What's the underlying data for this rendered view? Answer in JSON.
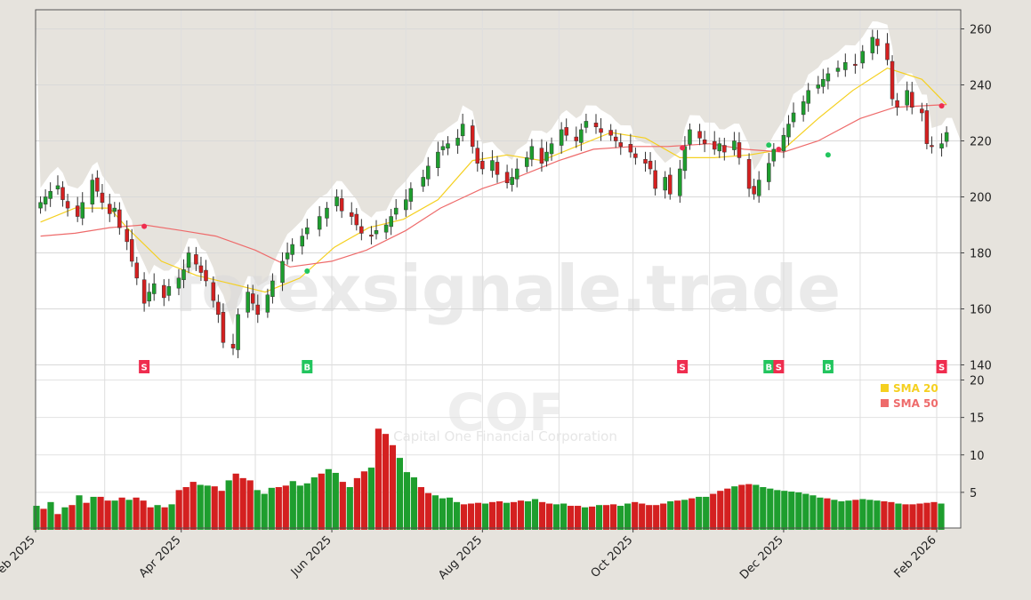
{
  "colors": {
    "background": "#e6e3dd",
    "plot_bg": "#ffffff",
    "up": "#1e9e2e",
    "down": "#d42020",
    "sma20": "#f5d020",
    "sma50": "#ee6b6b",
    "buy": "#22c55e",
    "sell": "#ef2d4f"
  },
  "watermark": {
    "site": "forexsignale.trade",
    "symbol": "COF",
    "company": "Capital One Financial Corporation"
  },
  "chart_data": [
    {
      "type": "candlestick",
      "title": "",
      "xlabel": "",
      "ylabel": "",
      "x_tick_labels": [
        "Feb 2025",
        "Apr 2025",
        "Jun 2025",
        "Aug 2025",
        "Oct 2025",
        "Dec 2025",
        "Feb 2026"
      ],
      "x_tick_dates": [
        "2025-02-01",
        "2025-04-01",
        "2025-06-01",
        "2025-08-01",
        "2025-10-01",
        "2025-12-01",
        "2026-02-01"
      ],
      "ylim": [
        140,
        265
      ],
      "y_ticks": [
        140,
        160,
        180,
        200,
        220,
        240,
        260
      ],
      "grid": true,
      "candles": [
        [
          "2025-02-03",
          198
        ],
        [
          "2025-02-05",
          200
        ],
        [
          "2025-02-07",
          202
        ],
        [
          "2025-02-10",
          204
        ],
        [
          "2025-02-12",
          199
        ],
        [
          "2025-02-14",
          196
        ],
        [
          "2025-02-18",
          193
        ],
        [
          "2025-02-20",
          198
        ],
        [
          "2025-02-24",
          206
        ],
        [
          "2025-02-26",
          202
        ],
        [
          "2025-02-28",
          198
        ],
        [
          "2025-03-03",
          194
        ],
        [
          "2025-03-05",
          196
        ],
        [
          "2025-03-07",
          189
        ],
        [
          "2025-03-10",
          184
        ],
        [
          "2025-03-12",
          177
        ],
        [
          "2025-03-14",
          171
        ],
        [
          "2025-03-17",
          162
        ],
        [
          "2025-03-19",
          166
        ],
        [
          "2025-03-21",
          169
        ],
        [
          "2025-03-25",
          164
        ],
        [
          "2025-03-27",
          168
        ],
        [
          "2025-03-31",
          171
        ],
        [
          "2025-04-02",
          174
        ],
        [
          "2025-04-04",
          180
        ],
        [
          "2025-04-07",
          176
        ],
        [
          "2025-04-09",
          173
        ],
        [
          "2025-04-11",
          170
        ],
        [
          "2025-04-14",
          163
        ],
        [
          "2025-04-16",
          158
        ],
        [
          "2025-04-18",
          148
        ],
        [
          "2025-04-22",
          146
        ],
        [
          "2025-04-24",
          158
        ],
        [
          "2025-04-28",
          166
        ],
        [
          "2025-04-30",
          162
        ],
        [
          "2025-05-02",
          158
        ],
        [
          "2025-05-06",
          165
        ],
        [
          "2025-05-08",
          170
        ],
        [
          "2025-05-12",
          177
        ],
        [
          "2025-05-14",
          180
        ],
        [
          "2025-05-16",
          183
        ],
        [
          "2025-05-20",
          186
        ],
        [
          "2025-05-22",
          189
        ],
        [
          "2025-05-27",
          193
        ],
        [
          "2025-05-30",
          196
        ],
        [
          "2025-06-03",
          200
        ],
        [
          "2025-06-05",
          195
        ],
        [
          "2025-06-09",
          193
        ],
        [
          "2025-06-11",
          190
        ],
        [
          "2025-06-13",
          187
        ],
        [
          "2025-06-17",
          186
        ],
        [
          "2025-06-19",
          188
        ],
        [
          "2025-06-23",
          190
        ],
        [
          "2025-06-25",
          193
        ],
        [
          "2025-06-27",
          196
        ],
        [
          "2025-07-01",
          199
        ],
        [
          "2025-07-03",
          203
        ],
        [
          "2025-07-08",
          207
        ],
        [
          "2025-07-10",
          211
        ],
        [
          "2025-07-14",
          216
        ],
        [
          "2025-07-16",
          218
        ],
        [
          "2025-07-18",
          219
        ],
        [
          "2025-07-22",
          221
        ],
        [
          "2025-07-24",
          226
        ],
        [
          "2025-07-28",
          218
        ],
        [
          "2025-07-30",
          212
        ],
        [
          "2025-08-01",
          210
        ],
        [
          "2025-08-05",
          213
        ],
        [
          "2025-08-07",
          208
        ],
        [
          "2025-08-11",
          205
        ],
        [
          "2025-08-13",
          207
        ],
        [
          "2025-08-15",
          210
        ],
        [
          "2025-08-19",
          214
        ],
        [
          "2025-08-21",
          218
        ],
        [
          "2025-08-25",
          212
        ],
        [
          "2025-08-27",
          216
        ],
        [
          "2025-08-29",
          219
        ],
        [
          "2025-09-02",
          224
        ],
        [
          "2025-09-04",
          222
        ],
        [
          "2025-09-08",
          220
        ],
        [
          "2025-09-10",
          224
        ],
        [
          "2025-09-12",
          227
        ],
        [
          "2025-09-16",
          225
        ],
        [
          "2025-09-18",
          223
        ],
        [
          "2025-09-22",
          222
        ],
        [
          "2025-09-24",
          220
        ],
        [
          "2025-09-26",
          218
        ],
        [
          "2025-09-30",
          216
        ],
        [
          "2025-10-02",
          214
        ],
        [
          "2025-10-06",
          212
        ],
        [
          "2025-10-08",
          210
        ],
        [
          "2025-10-10",
          203
        ],
        [
          "2025-10-14",
          207
        ],
        [
          "2025-10-16",
          201
        ],
        [
          "2025-10-20",
          210
        ],
        [
          "2025-10-22",
          218
        ],
        [
          "2025-10-24",
          224
        ],
        [
          "2025-10-28",
          221
        ],
        [
          "2025-10-30",
          219
        ],
        [
          "2025-11-03",
          217
        ],
        [
          "2025-11-05",
          219
        ],
        [
          "2025-11-07",
          216
        ],
        [
          "2025-11-11",
          220
        ],
        [
          "2025-11-13",
          214
        ],
        [
          "2025-11-17",
          203
        ],
        [
          "2025-11-19",
          201
        ],
        [
          "2025-11-21",
          206
        ],
        [
          "2025-11-25",
          212
        ],
        [
          "2025-11-27",
          217
        ],
        [
          "2025-12-01",
          222
        ],
        [
          "2025-12-03",
          226
        ],
        [
          "2025-12-05",
          230
        ],
        [
          "2025-12-09",
          234
        ],
        [
          "2025-12-11",
          238
        ],
        [
          "2025-12-15",
          240
        ],
        [
          "2025-12-17",
          242
        ],
        [
          "2025-12-19",
          244
        ],
        [
          "2025-12-23",
          246
        ],
        [
          "2025-12-26",
          248
        ],
        [
          "2025-12-30",
          247
        ],
        [
          "2026-01-02",
          252
        ],
        [
          "2026-01-06",
          257
        ],
        [
          "2026-01-08",
          254
        ],
        [
          "2026-01-12",
          249
        ],
        [
          "2026-01-14",
          235
        ],
        [
          "2026-01-16",
          232
        ],
        [
          "2026-01-20",
          238
        ],
        [
          "2026-01-22",
          232
        ],
        [
          "2026-01-26",
          230
        ],
        [
          "2026-01-28",
          219
        ],
        [
          "2026-01-30",
          218
        ],
        [
          "2026-02-03",
          219
        ],
        [
          "2026-02-05",
          223
        ]
      ],
      "series": [
        {
          "name": "SMA 20",
          "points": [
            [
              "2025-02-03",
              191
            ],
            [
              "2025-02-17",
              196
            ],
            [
              "2025-03-03",
              196
            ],
            [
              "2025-03-10",
              189
            ],
            [
              "2025-03-24",
              177
            ],
            [
              "2025-04-07",
              172
            ],
            [
              "2025-04-21",
              169
            ],
            [
              "2025-05-05",
              166
            ],
            [
              "2025-05-19",
              171
            ],
            [
              "2025-06-02",
              182
            ],
            [
              "2025-06-16",
              189
            ],
            [
              "2025-06-30",
              192
            ],
            [
              "2025-07-14",
              199
            ],
            [
              "2025-07-28",
              213
            ],
            [
              "2025-08-11",
              215
            ],
            [
              "2025-08-25",
              213
            ],
            [
              "2025-09-08",
              218
            ],
            [
              "2025-09-22",
              223
            ],
            [
              "2025-10-06",
              221
            ],
            [
              "2025-10-20",
              214
            ],
            [
              "2025-11-03",
              214
            ],
            [
              "2025-11-17",
              215
            ],
            [
              "2025-12-01",
              217
            ],
            [
              "2025-12-15",
              228
            ],
            [
              "2025-12-29",
              238
            ],
            [
              "2026-01-12",
              246
            ],
            [
              "2026-01-26",
              242
            ],
            [
              "2026-02-05",
              233
            ]
          ]
        },
        {
          "name": "SMA 50",
          "points": [
            [
              "2025-02-03",
              186
            ],
            [
              "2025-02-17",
              187
            ],
            [
              "2025-03-03",
              189
            ],
            [
              "2025-03-17",
              190
            ],
            [
              "2025-04-01",
              188
            ],
            [
              "2025-04-15",
              186
            ],
            [
              "2025-05-01",
              181
            ],
            [
              "2025-05-15",
              175
            ],
            [
              "2025-06-01",
              177
            ],
            [
              "2025-06-15",
              181
            ],
            [
              "2025-07-01",
              188
            ],
            [
              "2025-07-15",
              196
            ],
            [
              "2025-08-01",
              203
            ],
            [
              "2025-08-15",
              207
            ],
            [
              "2025-09-01",
              213
            ],
            [
              "2025-09-15",
              217
            ],
            [
              "2025-10-01",
              218
            ],
            [
              "2025-10-15",
              218
            ],
            [
              "2025-11-01",
              219
            ],
            [
              "2025-11-15",
              217
            ],
            [
              "2025-12-01",
              216
            ],
            [
              "2025-12-15",
              220
            ],
            [
              "2026-01-01",
              228
            ],
            [
              "2026-01-15",
              232
            ],
            [
              "2026-02-05",
              233
            ]
          ]
        }
      ],
      "signals": [
        {
          "date": "2025-03-17",
          "type": "S",
          "price": 189.5
        },
        {
          "date": "2025-05-22",
          "type": "B",
          "price": 173.5
        },
        {
          "date": "2025-10-21",
          "type": "S",
          "price": 217.5
        },
        {
          "date": "2025-11-25",
          "type": "B",
          "price": 218.5
        },
        {
          "date": "2025-11-29",
          "type": "S",
          "price": 217.0
        },
        {
          "date": "2025-12-19",
          "type": "B",
          "price": 215.0
        },
        {
          "date": "2026-02-03",
          "type": "S",
          "price": 232.5
        }
      ],
      "legend": {
        "placement": "bottom-right",
        "entries": [
          "SMA 20",
          "SMA 50"
        ]
      }
    },
    {
      "type": "bar",
      "title": "",
      "ylabel": "",
      "ylim": [
        0,
        20
      ],
      "y_ticks": [
        5,
        10,
        15,
        20
      ],
      "volumes": [
        3.2,
        2.8,
        3.7,
        2.1,
        3.0,
        3.3,
        4.6,
        3.6,
        4.4,
        4.4,
        3.9,
        3.9,
        4.3,
        4.0,
        4.3,
        3.9,
        3.0,
        3.3,
        3.0,
        3.4,
        5.3,
        5.7,
        6.4,
        6.0,
        5.9,
        5.8,
        5.2,
        6.6,
        7.5,
        6.9,
        6.6,
        5.3,
        4.8,
        5.6,
        5.7,
        5.9,
        6.5,
        5.9,
        6.2,
        7.0,
        7.5,
        8.1,
        7.6,
        6.4,
        5.7,
        6.9,
        7.8,
        8.3,
        13.5,
        12.8,
        11.3,
        9.6,
        7.7,
        7.0,
        5.7,
        4.9,
        4.6,
        4.2,
        4.3,
        3.7,
        3.4,
        3.5,
        3.6,
        3.5,
        3.7,
        3.8,
        3.6,
        3.7,
        3.9,
        3.8,
        4.1,
        3.7,
        3.5,
        3.4,
        3.5,
        3.2,
        3.2,
        3.0,
        3.1,
        3.3,
        3.3,
        3.4,
        3.2,
        3.5,
        3.7,
        3.5,
        3.3,
        3.3,
        3.5,
        3.8,
        3.9,
        4.0,
        4.2,
        4.4,
        4.4,
        4.8,
        5.2,
        5.5,
        5.8,
        6.0,
        6.1,
        6.0,
        5.7,
        5.5,
        5.3,
        5.2,
        5.1,
        5.0,
        4.8,
        4.6,
        4.3,
        4.2,
        4.0,
        3.8,
        3.9,
        4.0,
        4.1,
        4.0,
        3.9,
        3.8,
        3.7,
        3.5,
        3.4,
        3.4,
        3.5,
        3.6,
        3.7,
        3.5
      ],
      "up": [
        true,
        false,
        true,
        false,
        true,
        false,
        true,
        false,
        true,
        false,
        false,
        true,
        false,
        true,
        false,
        false,
        false,
        true,
        false,
        true,
        false,
        false,
        false,
        true,
        true,
        false,
        false,
        true,
        false,
        false,
        false,
        true,
        true,
        true,
        false,
        false,
        true,
        true,
        true,
        true,
        false,
        true,
        true,
        false,
        true,
        false,
        false,
        true,
        false,
        false,
        false,
        true,
        true,
        true,
        false,
        false,
        true,
        true,
        true,
        true,
        false,
        false,
        false,
        true,
        false,
        false,
        true,
        false,
        false,
        true,
        true,
        false,
        false,
        true,
        true,
        false,
        false,
        true,
        false,
        true,
        false,
        false,
        true,
        true,
        false,
        false,
        false,
        false,
        false,
        true,
        false,
        true,
        false,
        true,
        true,
        false,
        false,
        false,
        true,
        false,
        false,
        true,
        true,
        true,
        true,
        true,
        true,
        true,
        true,
        true,
        true,
        false,
        true,
        true,
        true,
        false,
        true,
        true,
        true,
        false,
        false,
        true,
        false,
        false,
        false,
        false,
        false,
        true
      ],
      "grid": true
    }
  ]
}
